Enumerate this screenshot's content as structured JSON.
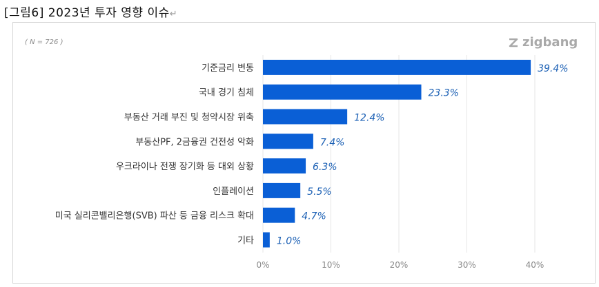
{
  "title": "[그림6] 2023년 투자 영향 이슈",
  "return_mark": "↵",
  "sample_note": "( N = 726 )",
  "logo_text": "zigbang",
  "chart_data": {
    "type": "bar",
    "orientation": "horizontal",
    "categories": [
      "기준금리 변동",
      "국내 경기 침체",
      "부동산 거래 부진 및 청약시장 위축",
      "부동산PF, 2금융권 건전성 악화",
      "우크라이나 전쟁 장기화 등 대외 상황",
      "인플레이션",
      "미국 실리콘밸리은행(SVB) 파산 등 금융 리스크 확대",
      "기타"
    ],
    "values": [
      39.4,
      23.3,
      12.4,
      7.4,
      6.3,
      5.5,
      4.7,
      1.0
    ],
    "data_labels": [
      "39.4%",
      "23.3%",
      "12.4%",
      "7.4%",
      "6.3%",
      "5.5%",
      "4.7%",
      "1.0%"
    ],
    "xticks": [
      "0%",
      "10%",
      "20%",
      "30%",
      "40%"
    ],
    "xlim": [
      0,
      45
    ],
    "grid": true,
    "bar_color": "#0a5fd6",
    "label_color": "#1a5fb4"
  }
}
